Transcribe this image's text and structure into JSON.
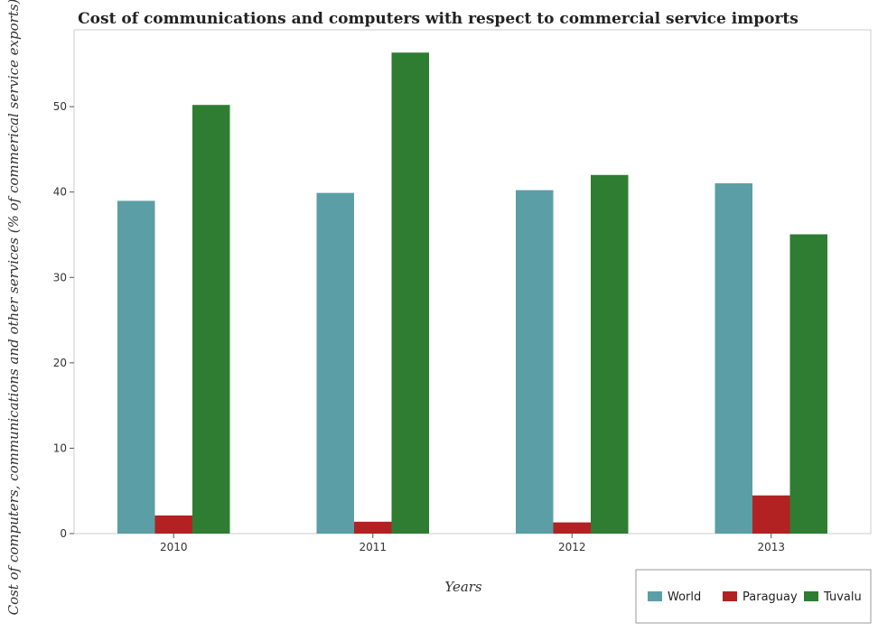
{
  "chart_data": {
    "type": "bar",
    "title": "Cost of communications and computers with respect to commercial service imports",
    "xlabel": "Years",
    "ylabel": "Cost of computers, communications and other services (% of commerical service exports)",
    "categories": [
      "2010",
      "2011",
      "2012",
      "2013"
    ],
    "series": [
      {
        "name": "World",
        "color": "#5b9ea6",
        "values": [
          38.97,
          39.9,
          40.22,
          41.02
        ]
      },
      {
        "name": "Paraguay",
        "color": "#b22222",
        "values": [
          2.12,
          1.39,
          1.31,
          4.47
        ]
      },
      {
        "name": "Tuvalu",
        "color": "#2e7d32",
        "values": [
          50.2,
          56.33,
          42.0,
          35.05
        ]
      }
    ],
    "ylim": [
      0,
      59
    ],
    "yticks": [
      0,
      10,
      20,
      30,
      40,
      50
    ],
    "grid": false,
    "legend_position": "bottom-right"
  }
}
